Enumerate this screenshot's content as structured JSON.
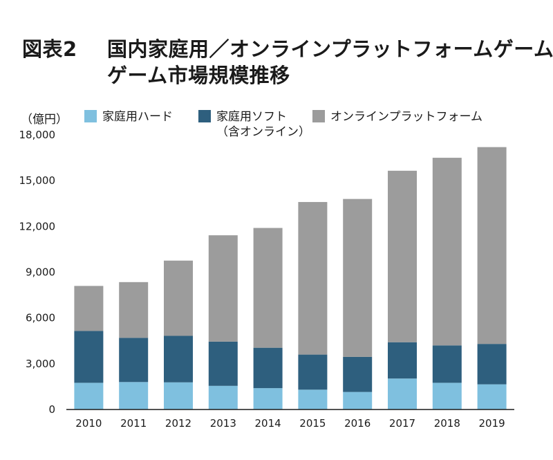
{
  "header": {
    "label": "図表2",
    "title_line1": "国内家庭用／オンラインプラットフォームゲーム",
    "title_line2": "ゲーム市場規模推移"
  },
  "chart_data": {
    "type": "bar",
    "stacked": true,
    "unit_label": "（億円）",
    "categories": [
      "2010",
      "2011",
      "2012",
      "2013",
      "2014",
      "2015",
      "2016",
      "2017",
      "2018",
      "2019"
    ],
    "series": [
      {
        "name": "家庭用ハード",
        "color": "#7fc0df",
        "values": [
          1750,
          1800,
          1780,
          1550,
          1400,
          1300,
          1150,
          2030,
          1750,
          1650
        ]
      },
      {
        "name": "家庭用ソフト",
        "name_line2": "（含オンライン）",
        "color": "#2e5f7e",
        "values": [
          3400,
          2900,
          3050,
          2900,
          2650,
          2300,
          2300,
          2380,
          2450,
          2650
        ]
      },
      {
        "name": "オンラインプラットフォーム",
        "color": "#9c9c9c",
        "values": [
          2950,
          3650,
          4930,
          6970,
          7850,
          10000,
          10350,
          11240,
          12300,
          12900
        ]
      }
    ],
    "yticks": [
      "0",
      "3,000",
      "6,000",
      "9,000",
      "12,000",
      "15,000",
      "18,000"
    ],
    "ylim": [
      0,
      18000
    ],
    "grid": false,
    "legend": "top"
  }
}
